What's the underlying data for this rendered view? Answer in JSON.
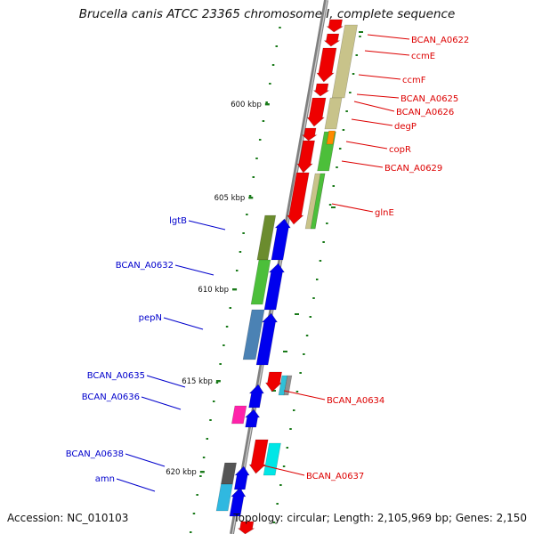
{
  "title": "Brucella canis ATCC 23365 chromosome I, complete sequence",
  "footer": {
    "accession": "Accession: NC_010103",
    "topology": "Topology: circular; Length: 2,105,969 bp; Genes: 2,150"
  },
  "colors": {
    "forward_label": "#0000cc",
    "reverse_label": "#dd0000",
    "backbone": "#808080",
    "tick": "#1a7a1a"
  },
  "kbp_ticks": [
    {
      "label": "600 kbp",
      "kbp": 600
    },
    {
      "label": "605 kbp",
      "kbp": 605
    },
    {
      "label": "610 kbp",
      "kbp": 610
    },
    {
      "label": "615 kbp",
      "kbp": 615
    },
    {
      "label": "620 kbp",
      "kbp": 620
    }
  ],
  "reverse_genes": [
    {
      "label": "BCAN_A0622"
    },
    {
      "label": "ccmE"
    },
    {
      "label": "ccmF"
    },
    {
      "label": "BCAN_A0625"
    },
    {
      "label": "BCAN_A0626"
    },
    {
      "label": "degP"
    },
    {
      "label": "copR"
    },
    {
      "label": "BCAN_A0629"
    },
    {
      "label": "glnE"
    },
    {
      "label": "BCAN_A0634"
    },
    {
      "label": "BCAN_A0637"
    }
  ],
  "forward_genes": [
    {
      "label": "lgtB"
    },
    {
      "label": "BCAN_A0632"
    },
    {
      "label": "pepN"
    },
    {
      "label": "BCAN_A0635"
    },
    {
      "label": "BCAN_A0636"
    },
    {
      "label": "BCAN_A0638"
    },
    {
      "label": "amn"
    }
  ]
}
